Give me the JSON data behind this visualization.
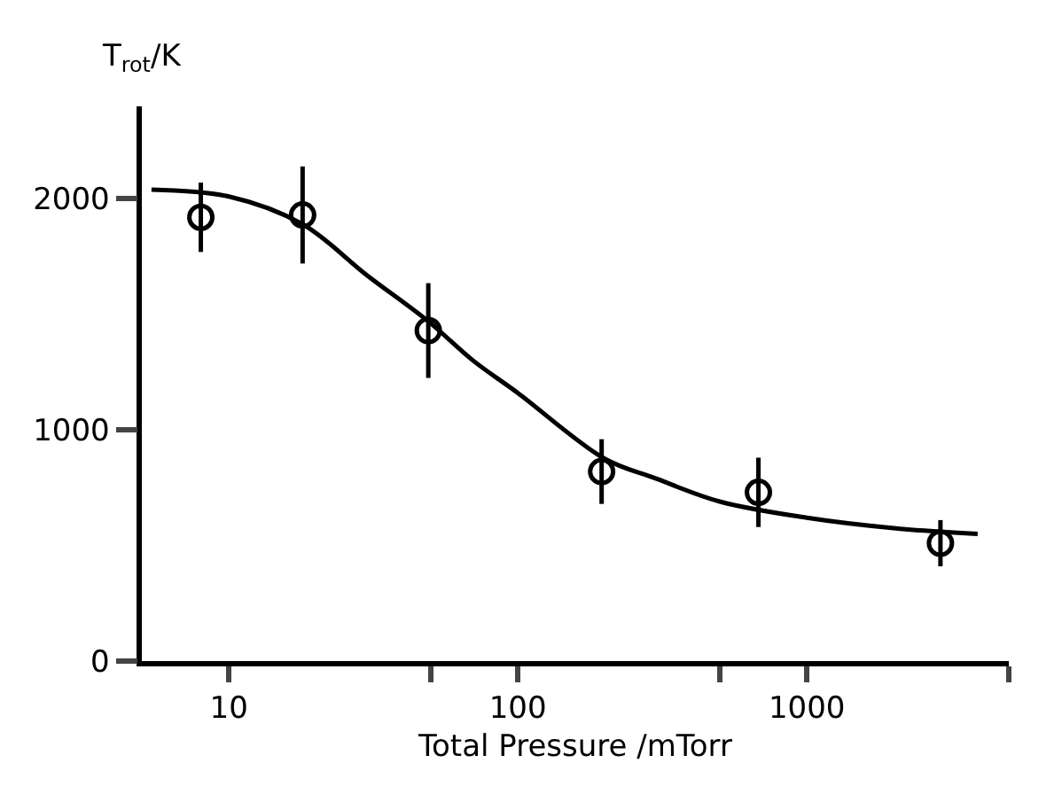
{
  "chart_data": {
    "type": "scatter",
    "xlabel": "Total Pressure /mTorr",
    "ylabel": "T$_{rot}$/K",
    "log": "x",
    "xlim": [
      5,
      5000
    ],
    "ylim": [
      0,
      2400
    ],
    "xticks": [
      10,
      {
        "value": 50,
        "label": null
      },
      100,
      {
        "value": 500,
        "label": null
      },
      1000,
      {
        "value": 5000,
        "label": null
      }
    ],
    "yticks": [
      0,
      1000,
      2000
    ],
    "grid": false,
    "series": [
      {
        "marker": "circle",
        "color": "#000000",
        "x": [
          8,
          18,
          49,
          195,
          680,
          2900
        ],
        "values": [
          1920,
          1930,
          1430,
          820,
          730,
          510
        ],
        "errors": [
          150,
          210,
          205,
          140,
          150,
          100
        ]
      },
      {
        "type": "line",
        "color": "#000000",
        "line_style": "solid",
        "x": [
          5.4,
          10,
          18,
          30,
          49,
          70,
          100,
          200,
          300,
          500,
          1000,
          2000,
          3900
        ],
        "values": [
          2040,
          2010,
          1890,
          1670,
          1470,
          1300,
          1160,
          875,
          790,
          690,
          620,
          575,
          550
        ]
      }
    ]
  }
}
